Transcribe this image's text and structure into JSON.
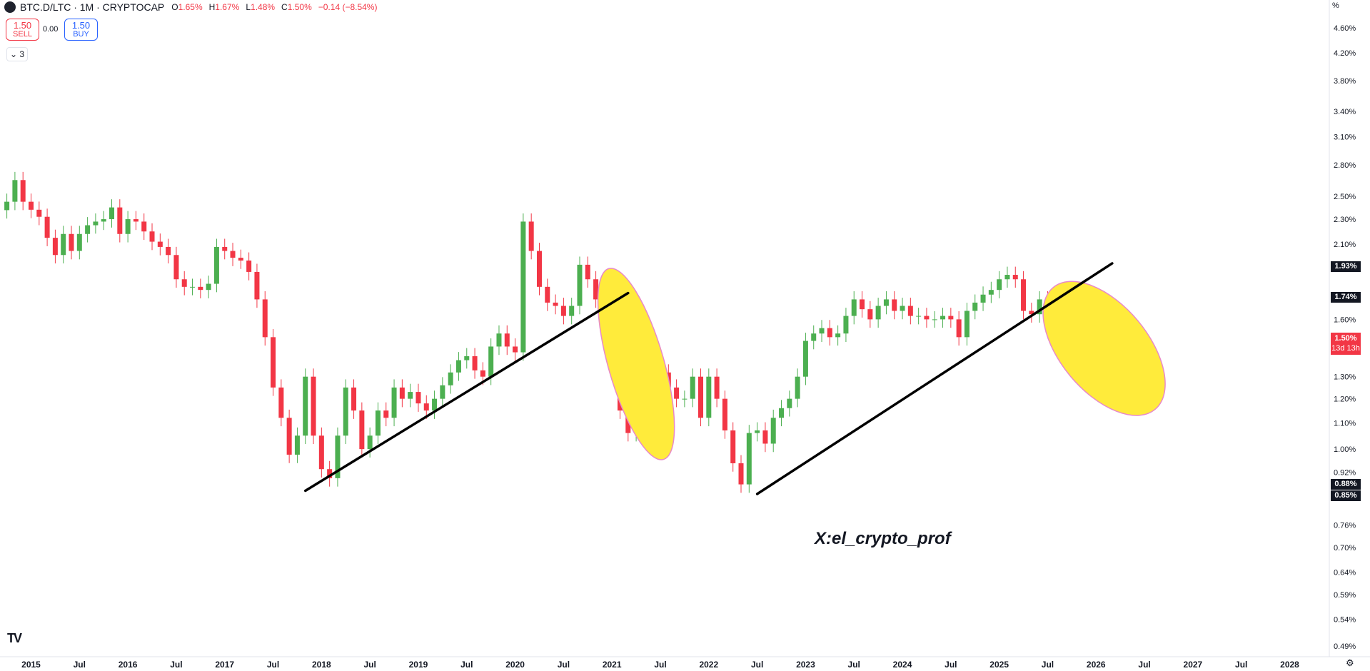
{
  "header": {
    "symbol": "BTC.D/LTC · 1M · CRYPTOCAP",
    "open_label": "O",
    "open_value": "1.65%",
    "high_label": "H",
    "high_value": "1.67%",
    "low_label": "L",
    "low_value": "1.48%",
    "close_label": "C",
    "close_value": "1.50%",
    "change": "−0.14 (−8.54%)"
  },
  "trade": {
    "sell_price": "1.50",
    "sell_label": "SELL",
    "spread": "0.00",
    "buy_price": "1.50",
    "buy_label": "BUY"
  },
  "indicators_toggle": "3",
  "price_scale_unit": "%",
  "watermark": "X:el_crypto_prof",
  "price_badges": {
    "level_a": "1.93%",
    "level_b": "1.74%",
    "last_price": "1.50%",
    "countdown": "13d 13h",
    "level_c": "0.88%",
    "level_d": "0.85%"
  },
  "colors": {
    "up": "#4caf50",
    "down": "#f23645",
    "trendline": "#000000",
    "highlight_fill": "#ffeb3b",
    "highlight_border": "#e889c9",
    "axis_text": "#131722"
  },
  "icons": [
    "logo-icon",
    "chevron-down-icon",
    "tradingview-logo-icon",
    "gear-icon"
  ],
  "chart_data": {
    "type": "candlestick",
    "symbol": "BTC.D/LTC",
    "interval": "1M",
    "y_scale": "log",
    "y_unit": "%",
    "ylim": [
      0.47,
      5.0
    ],
    "xlim": [
      "2014-10",
      "2028-07"
    ],
    "y_ticks": [
      "4.60%",
      "4.20%",
      "3.80%",
      "3.40%",
      "3.10%",
      "2.80%",
      "2.50%",
      "2.30%",
      "2.10%",
      "1.60%",
      "1.30%",
      "1.20%",
      "1.10%",
      "1.00%",
      "0.92%",
      "0.76%",
      "0.70%",
      "0.64%",
      "0.59%",
      "0.54%",
      "0.49%"
    ],
    "x_ticks": [
      "2015",
      "Jul",
      "2016",
      "Jul",
      "2017",
      "Jul",
      "2018",
      "Jul",
      "2019",
      "Jul",
      "2020",
      "Jul",
      "2021",
      "Jul",
      "2022",
      "Jul",
      "2023",
      "Jul",
      "2024",
      "Jul",
      "2025",
      "Jul",
      "2026",
      "Jul",
      "2027",
      "Jul",
      "2028"
    ],
    "x_tick_dates": [
      "2015-01",
      "2015-07",
      "2016-01",
      "2016-07",
      "2017-01",
      "2017-07",
      "2018-01",
      "2018-07",
      "2019-01",
      "2019-07",
      "2020-01",
      "2020-07",
      "2021-01",
      "2021-07",
      "2022-01",
      "2022-07",
      "2023-01",
      "2023-07",
      "2024-01",
      "2024-07",
      "2025-01",
      "2025-07",
      "2026-01",
      "2026-07",
      "2027-01",
      "2027-07",
      "2028-01"
    ],
    "candles_close": [
      2.45,
      2.65,
      2.45,
      2.38,
      2.32,
      2.15,
      2.02,
      2.18,
      2.05,
      2.18,
      2.25,
      2.28,
      2.3,
      2.4,
      2.18,
      2.3,
      2.28,
      2.2,
      2.12,
      2.08,
      2.02,
      1.85,
      1.8,
      1.8,
      1.78,
      1.82,
      2.08,
      2.05,
      2.0,
      1.98,
      1.9,
      1.72,
      1.5,
      1.25,
      1.12,
      0.98,
      1.05,
      1.3,
      1.05,
      0.93,
      0.9,
      1.05,
      1.25,
      1.15,
      1.0,
      1.05,
      1.15,
      1.12,
      1.25,
      1.2,
      1.23,
      1.18,
      1.15,
      1.2,
      1.26,
      1.32,
      1.38,
      1.4,
      1.33,
      1.3,
      1.45,
      1.52,
      1.45,
      1.42,
      2.28,
      2.05,
      1.8,
      1.7,
      1.68,
      1.62,
      1.68,
      1.95,
      1.85,
      1.72,
      1.55,
      1.4,
      1.15,
      1.06,
      1.18,
      1.25,
      1.33,
      1.32,
      1.25,
      1.2,
      1.2,
      1.3,
      1.12,
      1.3,
      1.2,
      1.07,
      0.95,
      0.88,
      1.06,
      1.07,
      1.02,
      1.12,
      1.16,
      1.2,
      1.3,
      1.48,
      1.52,
      1.55,
      1.5,
      1.52,
      1.62,
      1.72,
      1.66,
      1.6,
      1.68,
      1.72,
      1.65,
      1.68,
      1.62,
      1.62,
      1.6,
      1.6,
      1.62,
      1.6,
      1.5,
      1.65,
      1.7,
      1.75,
      1.78,
      1.85,
      1.88,
      1.85,
      1.65,
      1.63,
      1.72,
      1.7,
      1.75,
      1.7,
      1.5
    ],
    "annotations": [
      {
        "type": "trendline",
        "from": {
          "date": "2017-11",
          "value": 0.86
        },
        "to": {
          "date": "2021-03",
          "value": 1.76
        }
      },
      {
        "type": "trendline",
        "from": {
          "date": "2022-07",
          "value": 0.85
        },
        "to": {
          "date": "2026-03",
          "value": 1.96
        }
      },
      {
        "type": "highlight-ellipse",
        "near": "2021-04",
        "range": [
          0.95,
          1.95
        ]
      },
      {
        "type": "highlight-ellipse",
        "near": "2026-02",
        "range": [
          1.08,
          1.92
        ]
      }
    ]
  }
}
